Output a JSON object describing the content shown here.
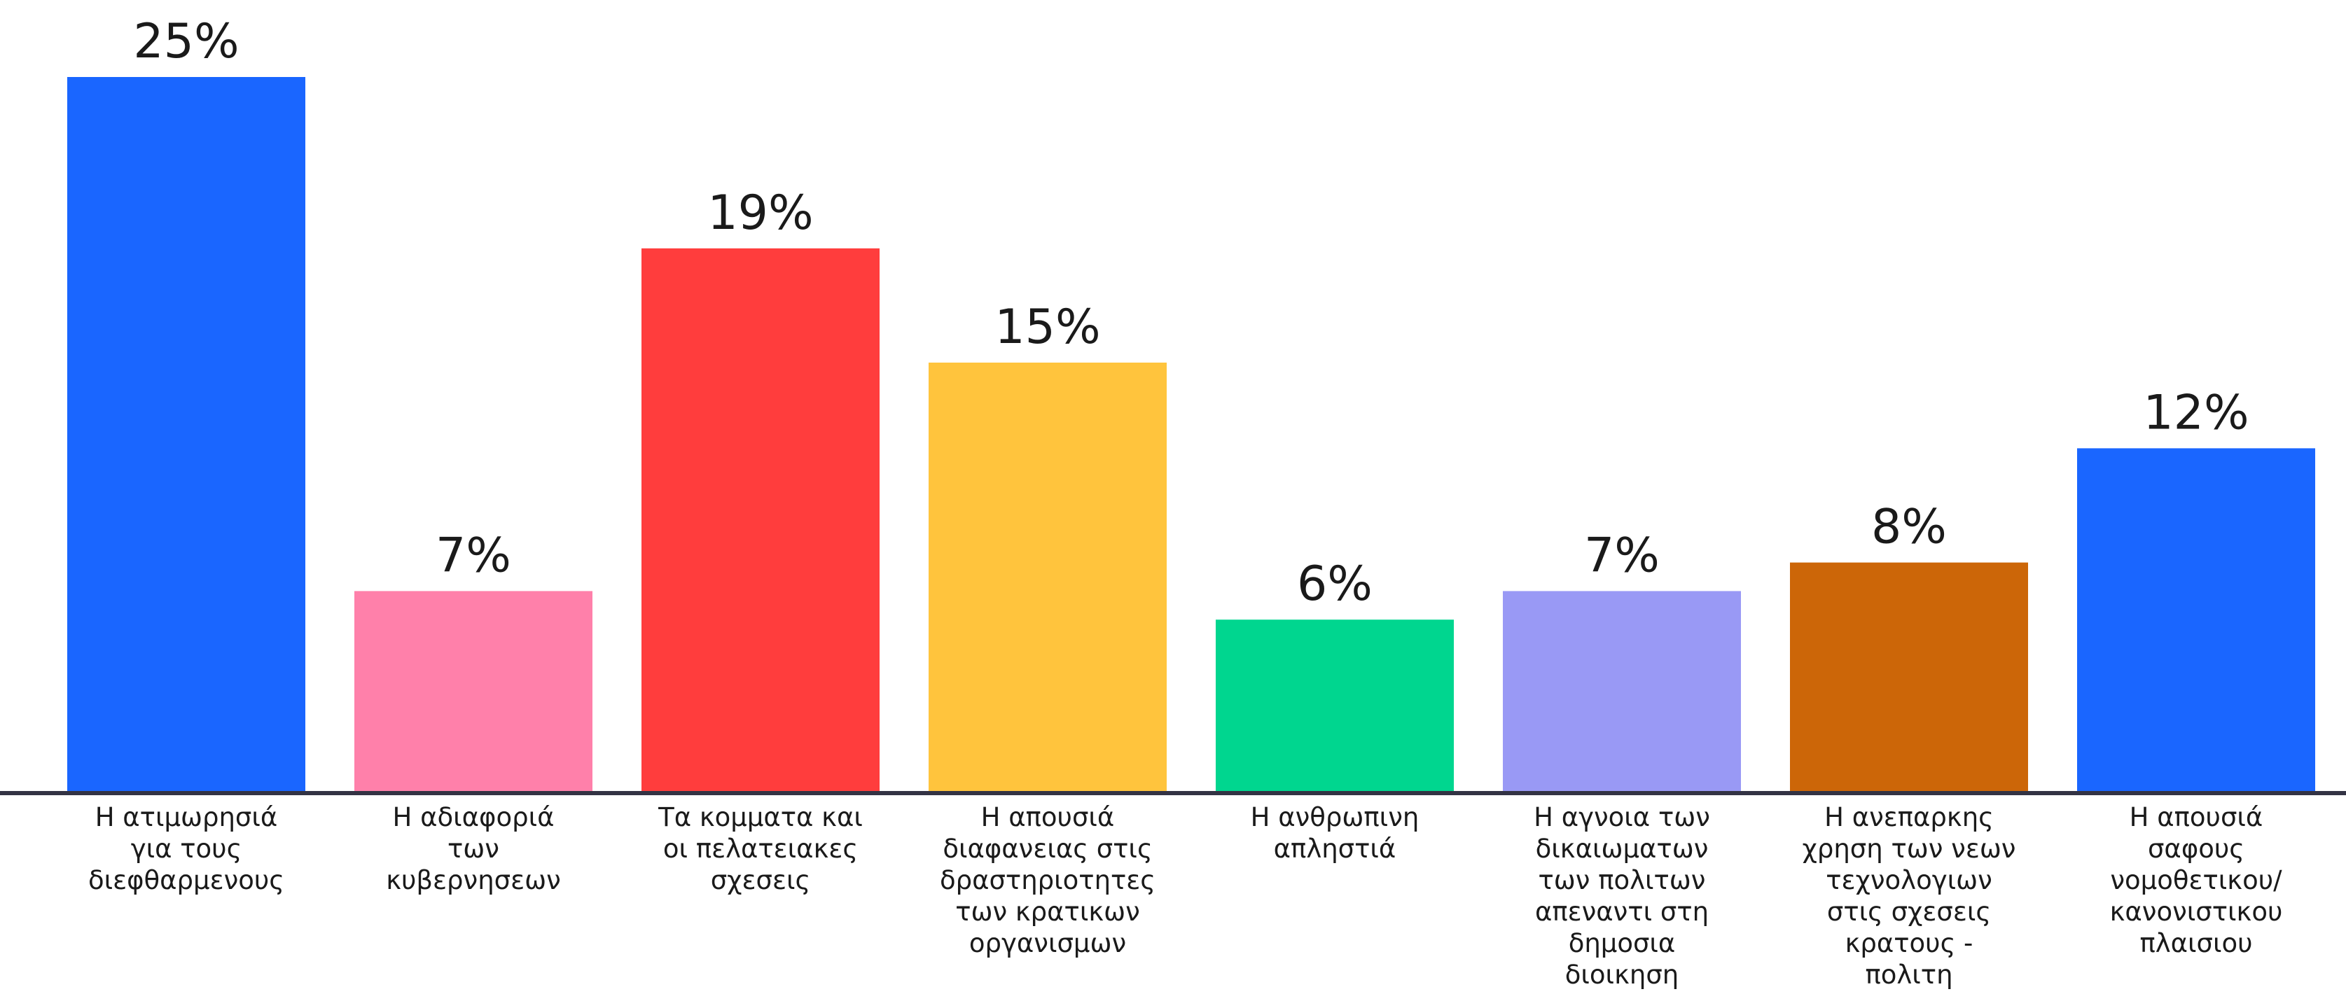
{
  "chart_data": {
    "type": "bar",
    "categories": [
      [
        "Η ατιμωρησιά",
        "για τους",
        "διεφθαρμενους"
      ],
      [
        "Η αδιαφοριά",
        "των",
        "κυβερνησεων"
      ],
      [
        "Τα κομματα και",
        "οι πελατειακες",
        "σχεσεις"
      ],
      [
        "Η απουσιά",
        "διαφανειας στις",
        "δραστηριοτητες",
        "των κρατικων",
        "οργανισμων"
      ],
      [
        "Η ανθρωπινη",
        "απληστιά"
      ],
      [
        "Η αγνοια των",
        "δικαιωματων",
        "των πολιτων",
        "απεναντι στη",
        "δημοσια",
        "διοικηση"
      ],
      [
        "Η ανεπαρκης",
        "χρηση των νεων",
        "τεχνολογιων",
        "στις σχεσεις",
        "κρατους -",
        "πολιτη"
      ],
      [
        "Η απουσιά",
        "σαφους",
        "νομοθετικου/",
        "κανονιστικου",
        "πλαισιου"
      ]
    ],
    "values": [
      25,
      7,
      19,
      15,
      6,
      7,
      8,
      12
    ],
    "value_labels": [
      "25%",
      "7%",
      "19%",
      "15%",
      "6%",
      "7%",
      "8%",
      "12%"
    ],
    "colors": [
      "#1a66ff",
      "#ff80aa",
      "#ff3d3d",
      "#ffc43d",
      "#00d68f",
      "#9999f5",
      "#cc6608",
      "#1a66ff"
    ],
    "axis_color": "#333344",
    "title": "",
    "xlabel": "",
    "ylabel": "",
    "ylim": [
      0,
      25
    ],
    "grid": false,
    "legend": "none"
  }
}
